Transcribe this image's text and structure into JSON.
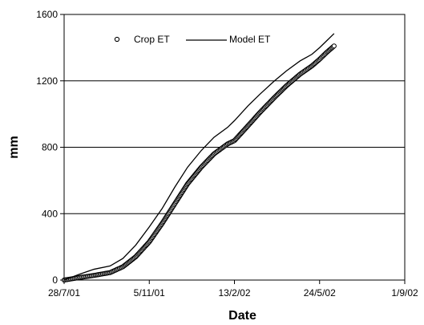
{
  "chart_data": {
    "type": "line",
    "xlabel": "Date",
    "ylabel": "mm",
    "ylim": [
      0,
      1600
    ],
    "yticks": [
      "0",
      "400",
      "800",
      "1200",
      "1600"
    ],
    "xlim": [
      "2001-07-28",
      "2002-09-01"
    ],
    "xticks": [
      {
        "label": "28/7/01",
        "date": "2001-07-28"
      },
      {
        "label": "5/11/01",
        "date": "2001-11-05"
      },
      {
        "label": "13/2/02",
        "date": "2002-02-13"
      },
      {
        "label": "24/5/02",
        "date": "2002-05-24"
      },
      {
        "label": "1/9/02",
        "date": "2002-09-01"
      }
    ],
    "grid": "horizontal",
    "legend": "top-center",
    "series": [
      {
        "name": "Crop ET",
        "style": "markers",
        "color": "#000000",
        "x": [
          "2001-07-28",
          "2001-08-15",
          "2001-09-01",
          "2001-09-20",
          "2001-10-05",
          "2001-10-20",
          "2001-11-05",
          "2001-11-20",
          "2001-12-05",
          "2001-12-20",
          "2002-01-05",
          "2002-01-20",
          "2002-02-05",
          "2002-02-13",
          "2002-03-01",
          "2002-03-15",
          "2002-04-01",
          "2002-04-15",
          "2002-05-01",
          "2002-05-15",
          "2002-05-24",
          "2002-06-01",
          "2002-06-10"
        ],
        "y": [
          0,
          15,
          28,
          45,
          80,
          140,
          230,
          340,
          460,
          580,
          680,
          760,
          820,
          840,
          930,
          1010,
          1100,
          1170,
          1240,
          1290,
          1330,
          1370,
          1410
        ]
      },
      {
        "name": "Model ET",
        "style": "line",
        "color": "#000000",
        "x": [
          "2001-07-28",
          "2001-08-15",
          "2001-09-01",
          "2001-09-20",
          "2001-10-05",
          "2001-10-20",
          "2001-11-05",
          "2001-11-20",
          "2001-12-05",
          "2001-12-20",
          "2002-01-05",
          "2002-01-20",
          "2002-02-05",
          "2002-02-13",
          "2002-03-01",
          "2002-03-15",
          "2002-04-01",
          "2002-04-15",
          "2002-05-01",
          "2002-05-15",
          "2002-05-24",
          "2002-06-01",
          "2002-06-10"
        ],
        "y": [
          0,
          35,
          65,
          85,
          130,
          210,
          320,
          430,
          560,
          680,
          780,
          860,
          920,
          960,
          1050,
          1120,
          1200,
          1260,
          1320,
          1360,
          1400,
          1440,
          1485
        ]
      }
    ]
  }
}
